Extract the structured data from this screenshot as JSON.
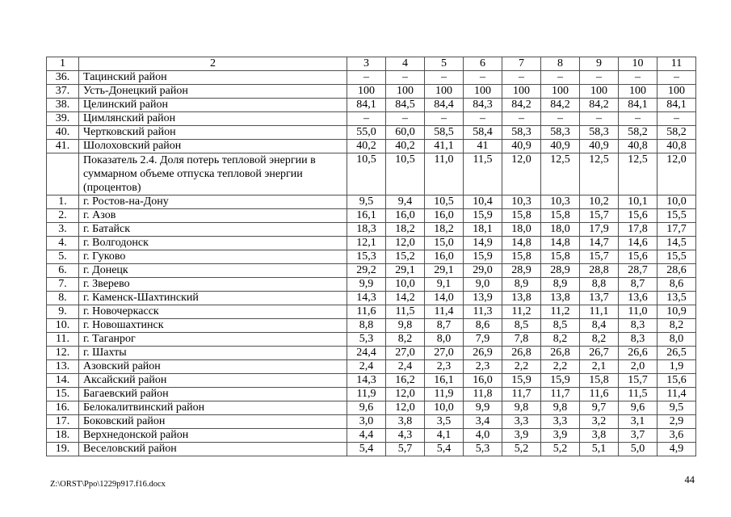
{
  "document": {
    "footer_path": "Z:\\ORST\\Ppo\\1229p917.f16.docx",
    "page_number": "44"
  },
  "colors": {
    "border": "#4f4f4f",
    "background": "#ffffff",
    "text": "#000000"
  },
  "table": {
    "header": [
      "1",
      "2",
      "3",
      "4",
      "5",
      "6",
      "7",
      "8",
      "9",
      "10",
      "11"
    ],
    "rows": [
      {
        "num": "36.",
        "name": "Тацинский район",
        "values": [
          "–",
          "–",
          "–",
          "–",
          "–",
          "–",
          "–",
          "–",
          "–"
        ]
      },
      {
        "num": "37.",
        "name": "Усть-Донецкий район",
        "values": [
          "100",
          "100",
          "100",
          "100",
          "100",
          "100",
          "100",
          "100",
          "100"
        ]
      },
      {
        "num": "38.",
        "name": "Целинский район",
        "values": [
          "84,1",
          "84,5",
          "84,4",
          "84,3",
          "84,2",
          "84,2",
          "84,2",
          "84,1",
          "84,1"
        ]
      },
      {
        "num": "39.",
        "name": "Цимлянский район",
        "values": [
          "–",
          "–",
          "–",
          "–",
          "–",
          "–",
          "–",
          "–",
          "–"
        ]
      },
      {
        "num": "40.",
        "name": "Чертковский район",
        "values": [
          "55,0",
          "60,0",
          "58,5",
          "58,4",
          "58,3",
          "58,3",
          "58,3",
          "58,2",
          "58,2"
        ]
      },
      {
        "num": "41.",
        "name": "Шолоховский район",
        "values": [
          "40,2",
          "40,2",
          "41,1",
          "41",
          "40,9",
          "40,9",
          "40,9",
          "40,8",
          "40,8"
        ]
      },
      {
        "num": "",
        "name": "Показатель 2.4. Доля потерь тепловой энергии в суммарном объеме отпуска тепловой энергии (процентов)",
        "values": [
          "10,5",
          "10,5",
          "11,0",
          "11,5",
          "12,0",
          "12,5",
          "12,5",
          "12,5",
          "12,0"
        ],
        "section": true
      },
      {
        "num": "1.",
        "name": "г. Ростов-на-Дону",
        "values": [
          "9,5",
          "9,4",
          "10,5",
          "10,4",
          "10,3",
          "10,3",
          "10,2",
          "10,1",
          "10,0"
        ]
      },
      {
        "num": "2.",
        "name": "г. Азов",
        "values": [
          "16,1",
          "16,0",
          "16,0",
          "15,9",
          "15,8",
          "15,8",
          "15,7",
          "15,6",
          "15,5"
        ]
      },
      {
        "num": "3.",
        "name": "г. Батайск",
        "values": [
          "18,3",
          "18,2",
          "18,2",
          "18,1",
          "18,0",
          "18,0",
          "17,9",
          "17,8",
          "17,7"
        ]
      },
      {
        "num": "4.",
        "name": "г. Волгодонск",
        "values": [
          "12,1",
          "12,0",
          "15,0",
          "14,9",
          "14,8",
          "14,8",
          "14,7",
          "14,6",
          "14,5"
        ]
      },
      {
        "num": "5.",
        "name": "г. Гуково",
        "values": [
          "15,3",
          "15,2",
          "16,0",
          "15,9",
          "15,8",
          "15,8",
          "15,7",
          "15,6",
          "15,5"
        ]
      },
      {
        "num": "6.",
        "name": "г. Донецк",
        "values": [
          "29,2",
          "29,1",
          "29,1",
          "29,0",
          "28,9",
          "28,9",
          "28,8",
          "28,7",
          "28,6"
        ]
      },
      {
        "num": "7.",
        "name": "г. Зверево",
        "values": [
          "9,9",
          "10,0",
          "9,1",
          "9,0",
          "8,9",
          "8,9",
          "8,8",
          "8,7",
          "8,6"
        ]
      },
      {
        "num": "8.",
        "name": "г. Каменск-Шахтинский",
        "values": [
          "14,3",
          "14,2",
          "14,0",
          "13,9",
          "13,8",
          "13,8",
          "13,7",
          "13,6",
          "13,5"
        ]
      },
      {
        "num": "9.",
        "name": "г. Новочеркасск",
        "values": [
          "11,6",
          "11,5",
          "11,4",
          "11,3",
          "11,2",
          "11,2",
          "11,1",
          "11,0",
          "10,9"
        ]
      },
      {
        "num": "10.",
        "name": "г. Новошахтинск",
        "values": [
          "8,8",
          "9,8",
          "8,7",
          "8,6",
          "8,5",
          "8,5",
          "8,4",
          "8,3",
          "8,2"
        ]
      },
      {
        "num": "11.",
        "name": "г. Таганрог",
        "values": [
          "5,3",
          "8,2",
          "8,0",
          "7,9",
          "7,8",
          "8,2",
          "8,2",
          "8,3",
          "8,0"
        ]
      },
      {
        "num": "12.",
        "name": "г. Шахты",
        "values": [
          "24,4",
          "27,0",
          "27,0",
          "26,9",
          "26,8",
          "26,8",
          "26,7",
          "26,6",
          "26,5"
        ]
      },
      {
        "num": "13.",
        "name": "Азовский район",
        "values": [
          "2,4",
          "2,4",
          "2,3",
          "2,3",
          "2,2",
          "2,2",
          "2,1",
          "2,0",
          "1,9"
        ]
      },
      {
        "num": "14.",
        "name": "Аксайский район",
        "values": [
          "14,3",
          "16,2",
          "16,1",
          "16,0",
          "15,9",
          "15,9",
          "15,8",
          "15,7",
          "15,6"
        ]
      },
      {
        "num": "15.",
        "name": "Багаевский район",
        "values": [
          "11,9",
          "12,0",
          "11,9",
          "11,8",
          "11,7",
          "11,7",
          "11,6",
          "11,5",
          "11,4"
        ]
      },
      {
        "num": "16.",
        "name": "Белокалитвинский район",
        "values": [
          "9,6",
          "12,0",
          "10,0",
          "9,9",
          "9,8",
          "9,8",
          "9,7",
          "9,6",
          "9,5"
        ]
      },
      {
        "num": "17.",
        "name": "Боковский район",
        "values": [
          "3,0",
          "3,8",
          "3,5",
          "3,4",
          "3,3",
          "3,3",
          "3,2",
          "3,1",
          "2,9"
        ]
      },
      {
        "num": "18.",
        "name": "Верхнедонской район",
        "values": [
          "4,4",
          "4,3",
          "4,1",
          "4,0",
          "3,9",
          "3,9",
          "3,8",
          "3,7",
          "3,6"
        ]
      },
      {
        "num": "19.",
        "name": "Веселовский район",
        "values": [
          "5,4",
          "5,7",
          "5,4",
          "5,3",
          "5,2",
          "5,2",
          "5,1",
          "5,0",
          "4,9"
        ]
      }
    ]
  }
}
